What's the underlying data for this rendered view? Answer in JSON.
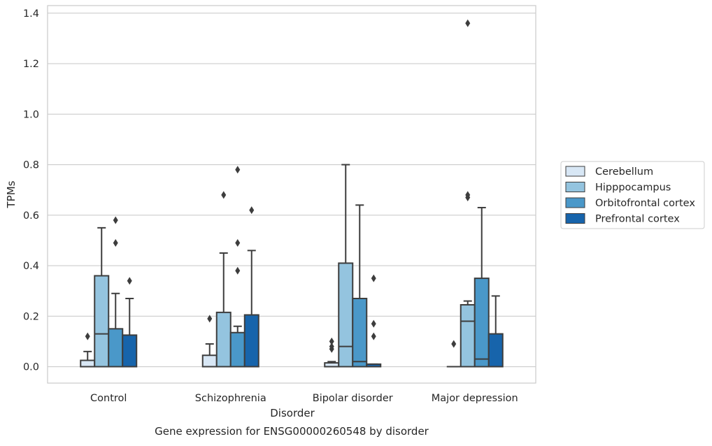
{
  "chart_data": {
    "type": "box",
    "caption": "Gene expression for ENSG00000260548 by disorder",
    "xlabel": "Disorder",
    "ylabel": "TPMs",
    "ylim": [
      -0.065,
      1.43
    ],
    "yticks": [
      0.0,
      0.2,
      0.4,
      0.6,
      0.8,
      1.0,
      1.2,
      1.4
    ],
    "ytick_labels": [
      "0.0",
      "0.2",
      "0.4",
      "0.6",
      "0.8",
      "1.0",
      "1.2",
      "1.4"
    ],
    "grid": "horizontal",
    "legend_position": "right",
    "categories": [
      "Control",
      "Schizophrenia",
      "Bipolar disorder",
      "Major depression"
    ],
    "series": [
      {
        "name": "Cerebellum",
        "color": "#d8e7f5",
        "boxes": [
          {
            "whislo": 0.0,
            "q1": 0.0,
            "med": 0.0,
            "q3": 0.025,
            "whishi": 0.06,
            "fliers": [
              0.12
            ]
          },
          {
            "whislo": 0.0,
            "q1": 0.0,
            "med": 0.0,
            "q3": 0.045,
            "whishi": 0.09,
            "fliers": [
              0.19
            ]
          },
          {
            "whislo": 0.0,
            "q1": 0.0,
            "med": 0.0,
            "q3": 0.015,
            "whishi": 0.02,
            "fliers": [
              0.07,
              0.08,
              0.1
            ]
          },
          {
            "whislo": 0.0,
            "q1": 0.0,
            "med": 0.0,
            "q3": 0.0,
            "whishi": 0.0,
            "fliers": [
              0.09
            ]
          }
        ]
      },
      {
        "name": "Hipppocampus",
        "color": "#94c4df",
        "boxes": [
          {
            "whislo": 0.0,
            "q1": 0.0,
            "med": 0.13,
            "q3": 0.36,
            "whishi": 0.55,
            "fliers": []
          },
          {
            "whislo": 0.0,
            "q1": 0.0,
            "med": 0.0,
            "q3": 0.215,
            "whishi": 0.45,
            "fliers": [
              0.68
            ]
          },
          {
            "whislo": 0.0,
            "q1": 0.0,
            "med": 0.08,
            "q3": 0.41,
            "whishi": 0.8,
            "fliers": []
          },
          {
            "whislo": 0.0,
            "q1": 0.0,
            "med": 0.18,
            "q3": 0.245,
            "whishi": 0.26,
            "fliers": [
              0.67,
              0.68,
              1.36
            ]
          }
        ]
      },
      {
        "name": "Orbitofrontal cortex",
        "color": "#4a98c9",
        "boxes": [
          {
            "whislo": 0.0,
            "q1": 0.0,
            "med": 0.0,
            "q3": 0.15,
            "whishi": 0.29,
            "fliers": [
              0.49,
              0.58
            ]
          },
          {
            "whislo": 0.0,
            "q1": 0.0,
            "med": 0.0,
            "q3": 0.135,
            "whishi": 0.16,
            "fliers": [
              0.38,
              0.49,
              0.78
            ]
          },
          {
            "whislo": 0.0,
            "q1": 0.0,
            "med": 0.02,
            "q3": 0.27,
            "whishi": 0.64,
            "fliers": []
          },
          {
            "whislo": 0.0,
            "q1": 0.0,
            "med": 0.03,
            "q3": 0.35,
            "whishi": 0.63,
            "fliers": []
          }
        ]
      },
      {
        "name": "Prefrontal cortex",
        "color": "#1764ab",
        "boxes": [
          {
            "whislo": 0.0,
            "q1": 0.0,
            "med": 0.0,
            "q3": 0.125,
            "whishi": 0.27,
            "fliers": [
              0.34
            ]
          },
          {
            "whislo": 0.0,
            "q1": 0.0,
            "med": 0.0,
            "q3": 0.205,
            "whishi": 0.46,
            "fliers": [
              0.62
            ]
          },
          {
            "whislo": 0.0,
            "q1": 0.0,
            "med": 0.0,
            "q3": 0.01,
            "whishi": 0.01,
            "fliers": [
              0.12,
              0.17,
              0.35
            ]
          },
          {
            "whislo": 0.0,
            "q1": 0.0,
            "med": 0.0,
            "q3": 0.13,
            "whishi": 0.28,
            "fliers": []
          }
        ]
      }
    ]
  },
  "colors": {
    "axes_edge": "#cccccc",
    "grid": "#cccccc",
    "box_edge": "#3d3d3d",
    "text": "#262626"
  }
}
